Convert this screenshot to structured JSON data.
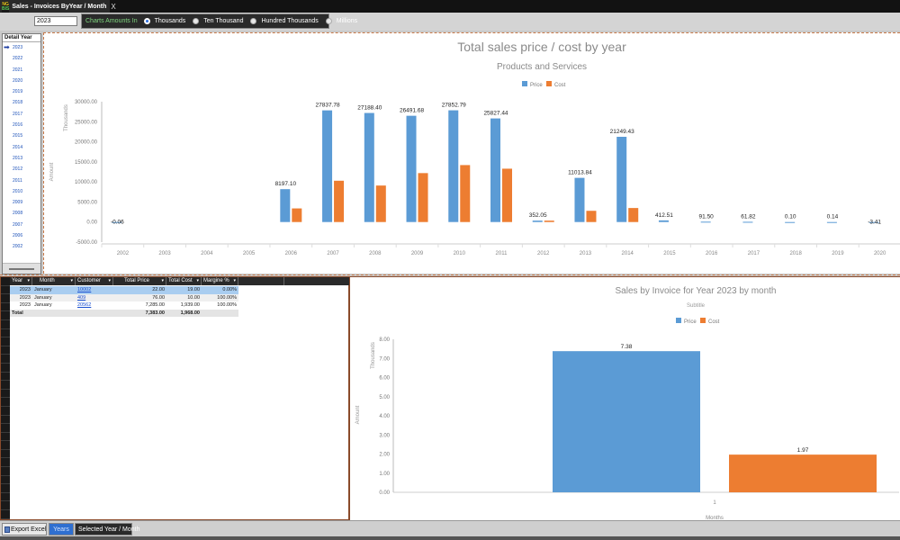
{
  "window": {
    "logo_line1": "NG",
    "logo_line2": "BIS",
    "tab_title": "Sales - Invoices ByYear / Month",
    "close_glyph": "X"
  },
  "toolbar": {
    "year_value": "2023",
    "radio_group_label": "Charts Amounts In",
    "options": [
      "Thousands",
      "Ten Thousand",
      "Hundred Thousands",
      "Millions"
    ],
    "selected_option": "Thousands"
  },
  "year_list": {
    "header": "Detail Year",
    "items": [
      "2023",
      "2022",
      "2021",
      "2020",
      "2019",
      "2018",
      "2017",
      "2016",
      "2015",
      "2014",
      "2013",
      "2012",
      "2011",
      "2010",
      "2009",
      "2008",
      "2007",
      "2006",
      "2002"
    ],
    "selected": "2023"
  },
  "grid": {
    "columns": [
      "Year",
      "Month",
      "Customer",
      "Total Price",
      "Total Cost",
      "Margine %"
    ],
    "rows": [
      {
        "year": "2023",
        "month": "January",
        "customer": "10002",
        "price": "22.00",
        "cost": "19.00",
        "margin": "0.00%"
      },
      {
        "year": "2023",
        "month": "January",
        "customer": "409",
        "price": "76.00",
        "cost": "10.00",
        "margin": "100.00%"
      },
      {
        "year": "2023",
        "month": "January",
        "customer": "20562",
        "price": "7,285.00",
        "cost": "1,939.00",
        "margin": "100.00%"
      }
    ],
    "total": {
      "label": "Total",
      "price": "7,383.00",
      "cost": "1,968.00"
    }
  },
  "bottom_bar": {
    "export_label": "Export Excel",
    "years_label": "Years",
    "selected_label": "Selected Year / Month"
  },
  "colors": {
    "price": "#5b9bd5",
    "cost": "#ed7d31"
  },
  "chart_data": [
    {
      "type": "bar",
      "title": "Total sales price / cost by year",
      "subtitle": "Products and Services",
      "ylabel": "Amount",
      "yunit": "Thousands",
      "xlabel": "",
      "legend": "top-center",
      "ylim": [
        -5000,
        30000
      ],
      "yticks": [
        "-5000.00",
        "0.00",
        "5000.00",
        "10000.00",
        "15000.00",
        "20000.00",
        "25000.00",
        "30000.00"
      ],
      "categories": [
        "2002",
        "2003",
        "2004",
        "2005",
        "2006",
        "2007",
        "2008",
        "2009",
        "2010",
        "2011",
        "2012",
        "2013",
        "2014",
        "2015",
        "2016",
        "2017",
        "2018",
        "2019",
        "2020"
      ],
      "series": [
        {
          "name": "Price",
          "values": [
            -0.06,
            0,
            0,
            0,
            8197.1,
            27837.78,
            27188.4,
            26491.68,
            27852.79,
            25827.44,
            352.05,
            11013.84,
            21249.43,
            412.51,
            91.5,
            61.82,
            0.1,
            0.14,
            -3.41
          ]
        },
        {
          "name": "Cost",
          "values": [
            0,
            0,
            0,
            0,
            3400,
            10300,
            9100,
            12200,
            14200,
            13300,
            350,
            2800,
            3500,
            0,
            0,
            0,
            0,
            0,
            0
          ]
        }
      ],
      "data_labels": [
        "-0.06",
        "",
        "",
        "",
        "8197.10",
        "27837.78",
        "27188.40",
        "26491.68",
        "27852.79",
        "25827.44",
        "352.05",
        "11013.84",
        "21249.43",
        "412.51",
        "91.50",
        "61.82",
        "0.10",
        "0.14",
        "-3.41"
      ]
    },
    {
      "type": "bar",
      "title": "Sales by Invoice for Year 2023 by month",
      "subtitle": "Subtitle",
      "xlabel": "Months",
      "ylabel": "Amount",
      "yunit": "Thousands",
      "legend": "top-center",
      "ylim": [
        0,
        8
      ],
      "yticks": [
        "0.00",
        "1.00",
        "2.00",
        "3.00",
        "4.00",
        "5.00",
        "6.00",
        "7.00",
        "8.00"
      ],
      "categories": [
        "1"
      ],
      "series": [
        {
          "name": "Price",
          "values": [
            7.38
          ]
        },
        {
          "name": "Cost",
          "values": [
            1.97
          ]
        }
      ],
      "data_labels": [
        [
          "7.38"
        ],
        [
          "1.97"
        ]
      ]
    }
  ]
}
